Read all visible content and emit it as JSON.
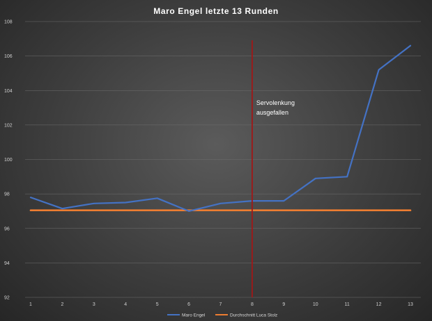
{
  "chart_data": {
    "type": "line",
    "title": "Maro  Engel  letzte  13  Runden",
    "x": [
      1,
      2,
      3,
      4,
      5,
      6,
      7,
      8,
      9,
      10,
      11,
      12,
      13
    ],
    "x_tick_labels": [
      "1",
      "2",
      "3",
      "4",
      "5",
      "6",
      "7",
      "8",
      "9",
      "10",
      "11",
      "12",
      "13"
    ],
    "y_tick_labels": [
      "92",
      "94",
      "96",
      "98",
      "100",
      "102",
      "104",
      "106",
      "108"
    ],
    "ylim": [
      92,
      108
    ],
    "grid": true,
    "legend_position": "bottom",
    "series": [
      {
        "name": "Maro Engel",
        "color": "#4472c4",
        "values": [
          97.8,
          97.15,
          97.45,
          97.5,
          97.75,
          97.0,
          97.45,
          97.6,
          97.6,
          98.9,
          99.0,
          105.2,
          106.6
        ]
      },
      {
        "name": "Durchschnitt Luca Stolz",
        "color": "#ed7d31",
        "values": [
          97.05,
          97.05,
          97.05,
          97.05,
          97.05,
          97.05,
          97.05,
          97.05,
          97.05,
          97.05,
          97.05,
          97.05,
          97.05
        ]
      }
    ],
    "annotation": {
      "text_lines": [
        "Servolenkung",
        "ausgefallen"
      ],
      "x": 8,
      "line_color": "#a01818"
    }
  }
}
